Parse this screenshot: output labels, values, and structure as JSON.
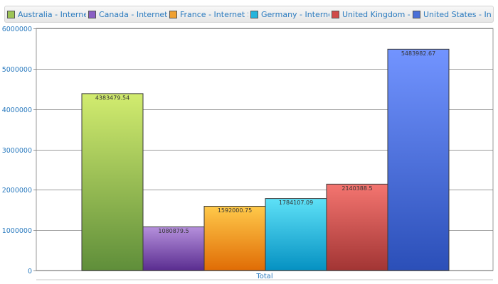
{
  "chart_data": {
    "type": "bar",
    "categories": [
      "Total"
    ],
    "ylim": [
      0,
      6000000
    ],
    "yticks": [
      0,
      1000000,
      2000000,
      3000000,
      4000000,
      5000000,
      6000000
    ],
    "grid": true,
    "legend_position": "top",
    "series": [
      {
        "name": "Australia - Internet Sales",
        "values": [
          4383479.54
        ],
        "label": "4383479.54",
        "color_top": "#d2ec6f",
        "color_bottom": "#5f8e3a"
      },
      {
        "name": "Canada - Internet Sales",
        "values": [
          1080879.5
        ],
        "label": "1080879.5",
        "color_top": "#b590dc",
        "color_bottom": "#5a2d90"
      },
      {
        "name": "France - Internet Sales",
        "values": [
          1592000.75
        ],
        "label": "1592000.75",
        "color_top": "#ffc94a",
        "color_bottom": "#e06c05"
      },
      {
        "name": "Germany - Internet Sales",
        "values": [
          1784107.09
        ],
        "label": "1784107.09",
        "color_top": "#5ee1f7",
        "color_bottom": "#0591c2"
      },
      {
        "name": "United Kingdom - Internet Sales",
        "values": [
          2140388.5
        ],
        "label": "2140388.5",
        "color_top": "#f47570",
        "color_bottom": "#a23534"
      },
      {
        "name": "United States - Internet Sales",
        "values": [
          5483982.67
        ],
        "label": "5483982.67",
        "color_top": "#7294ff",
        "color_bottom": "#2b4fb8"
      }
    ]
  },
  "legend": {
    "items": [
      {
        "label": "Australia - Internet Sales",
        "color": "#9dc456"
      },
      {
        "label": "Canada - Internet Sales",
        "color": "#8a5fc4"
      },
      {
        "label": "France - Internet Sales",
        "color": "#f0a030"
      },
      {
        "label": "Germany - Internet Sales",
        "color": "#24b4dc"
      },
      {
        "label": "United Kingdom - Internet Sales",
        "color": "#d04a48"
      },
      {
        "label": "United States - Internet Sales",
        "color": "#4a6fd8"
      }
    ]
  }
}
